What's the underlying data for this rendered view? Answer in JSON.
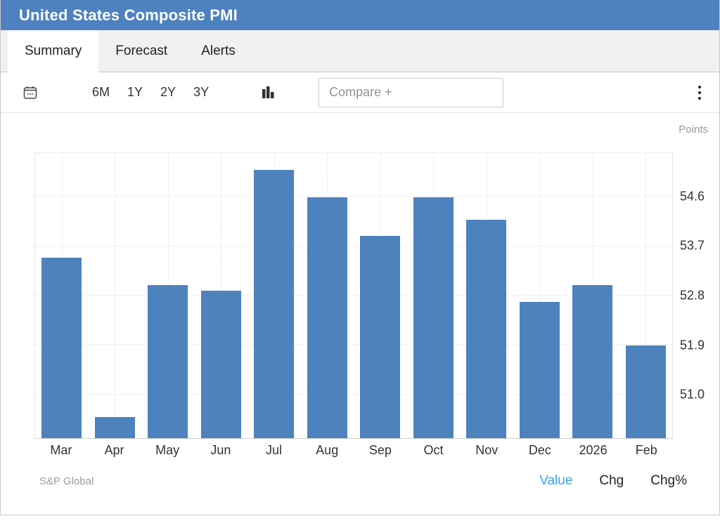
{
  "header": {
    "title": "United States Composite PMI"
  },
  "tabs": [
    {
      "label": "Summary",
      "active": true
    },
    {
      "label": "Forecast",
      "active": false
    },
    {
      "label": "Alerts",
      "active": false
    }
  ],
  "toolbar": {
    "icons": [
      "calendar-icon",
      "chart-type-bar-icon",
      "kebab-menu-icon"
    ],
    "ranges": [
      "6M",
      "1Y",
      "2Y",
      "3Y"
    ],
    "compare_placeholder": "Compare +"
  },
  "chart_data": {
    "type": "bar",
    "title": "United States Composite PMI",
    "unit": "Points",
    "categories": [
      "Mar",
      "Apr",
      "May",
      "Jun",
      "Jul",
      "Aug",
      "Sep",
      "Oct",
      "Nov",
      "Dec",
      "2026",
      "Feb"
    ],
    "values": [
      53.5,
      50.6,
      53.0,
      52.9,
      55.1,
      54.6,
      53.9,
      54.6,
      54.2,
      52.7,
      53.0,
      51.9
    ],
    "yticks": [
      51.0,
      51.9,
      52.8,
      53.7,
      54.6
    ],
    "ylim": [
      50.2,
      55.4
    ],
    "grid": true,
    "legend": "none",
    "bar_color": "#4d82bd"
  },
  "footer": {
    "source": "S&P Global",
    "modes": [
      {
        "label": "Value",
        "active": true
      },
      {
        "label": "Chg",
        "active": false
      },
      {
        "label": "Chg%",
        "active": false
      }
    ]
  },
  "colors": {
    "header_bg": "#4e81bf",
    "bar_fill": "#4d82bd",
    "active_mode_link": "#3aa0f8",
    "muted_text": "#999999"
  }
}
